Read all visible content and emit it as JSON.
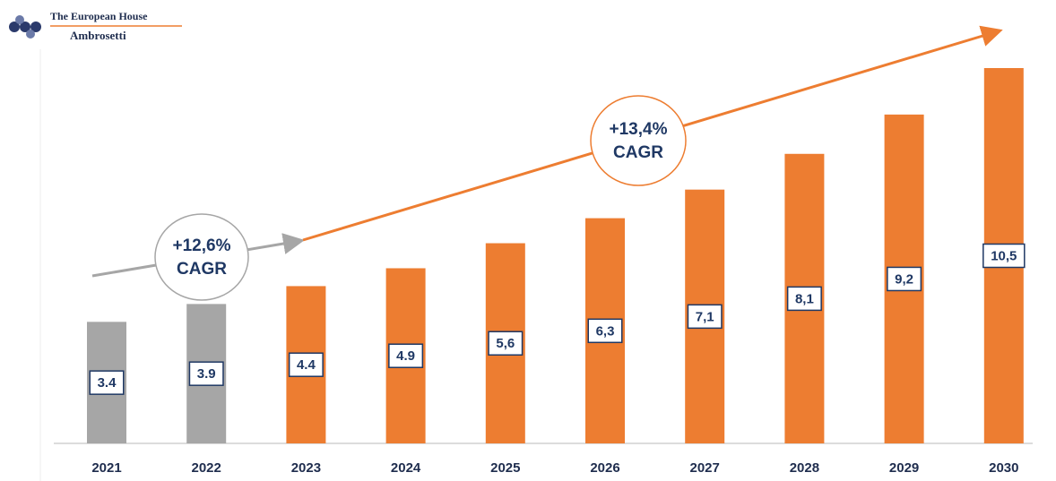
{
  "logo": {
    "line1": "The European House",
    "line2": "Ambrosetti"
  },
  "chart_data": {
    "type": "bar",
    "categories": [
      "2021",
      "2022",
      "2023",
      "2024",
      "2025",
      "2026",
      "2027",
      "2028",
      "2029",
      "2030"
    ],
    "values": [
      3.4,
      3.9,
      4.4,
      4.9,
      5.6,
      6.3,
      7.1,
      8.1,
      9.2,
      10.5
    ],
    "value_labels": [
      "3.4",
      "3.9",
      "4.4",
      "4.9",
      "5,6",
      "6,3",
      "7,1",
      "8,1",
      "9,2",
      "10,5"
    ],
    "colors": [
      "#a6a6a6",
      "#a6a6a6",
      "#ed7d31",
      "#ed7d31",
      "#ed7d31",
      "#ed7d31",
      "#ed7d31",
      "#ed7d31",
      "#ed7d31",
      "#ed7d31"
    ],
    "annotations": [
      {
        "lines": [
          "+12,6%",
          "CAGR"
        ],
        "color": "#a6a6a6"
      },
      {
        "lines": [
          "+13,4%",
          "CAGR"
        ],
        "color": "#ed7d31"
      }
    ]
  }
}
